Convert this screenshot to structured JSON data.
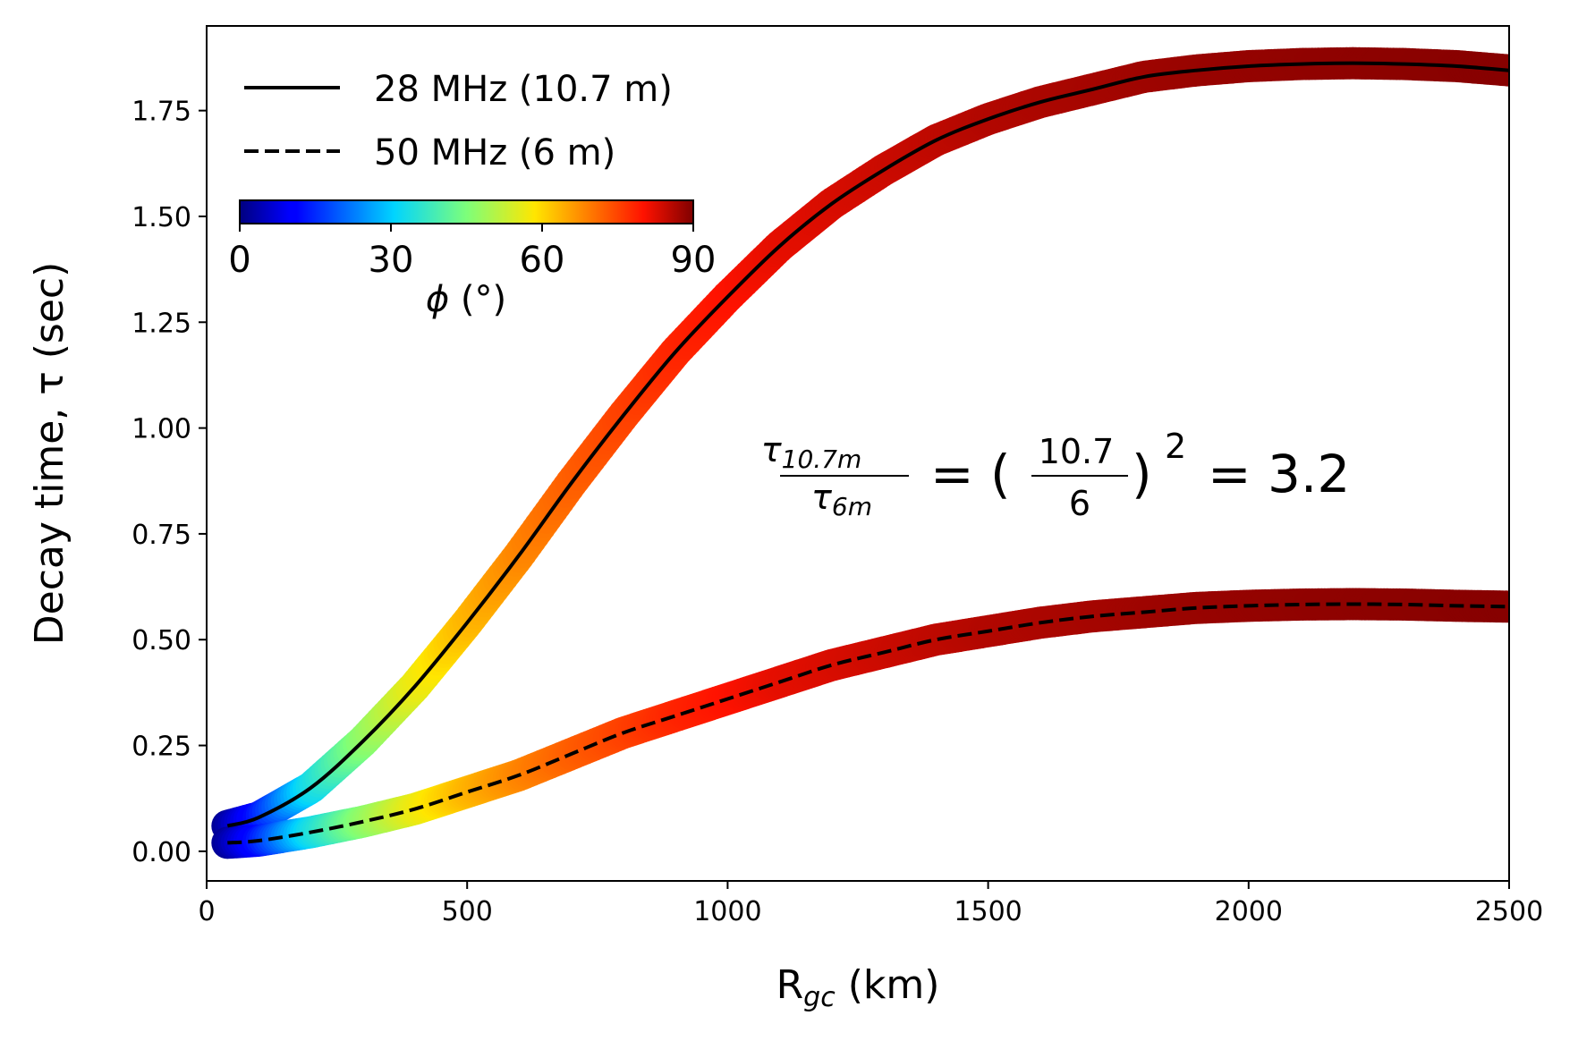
{
  "chart_data": {
    "type": "line",
    "xlabel": "R",
    "xlabel_sub": "gc",
    "xlabel_unit": " (km)",
    "ylabel": "Decay time, τ (sec)",
    "xlim": [
      0,
      2500
    ],
    "ylim": [
      -0.07,
      1.95
    ],
    "xticks": [
      0,
      500,
      1000,
      1500,
      2000,
      2500
    ],
    "xtick_labels": [
      "0",
      "500",
      "1000",
      "1500",
      "2000",
      "2500"
    ],
    "yticks": [
      0.0,
      0.25,
      0.5,
      0.75,
      1.0,
      1.25,
      1.5,
      1.75
    ],
    "ytick_labels": [
      "0.00",
      "0.25",
      "0.50",
      "0.75",
      "1.00",
      "1.25",
      "1.50",
      "1.75"
    ],
    "grid": false,
    "legend_position": "top-left",
    "series": [
      {
        "name": "28 MHz (10.7 m)",
        "line_style": "solid",
        "color": "#000000",
        "x": [
          40,
          100,
          200,
          300,
          400,
          500,
          600,
          700,
          800,
          900,
          1000,
          1100,
          1200,
          1300,
          1400,
          1500,
          1600,
          1700,
          1800,
          1900,
          2000,
          2100,
          2200,
          2300,
          2400,
          2500
        ],
        "y": [
          0.06,
          0.08,
          0.15,
          0.26,
          0.39,
          0.54,
          0.7,
          0.87,
          1.03,
          1.18,
          1.31,
          1.43,
          1.53,
          1.61,
          1.68,
          1.73,
          1.77,
          1.8,
          1.83,
          1.845,
          1.855,
          1.86,
          1.862,
          1.86,
          1.855,
          1.845
        ]
      },
      {
        "name": "50 MHz (6 m)",
        "line_style": "dashed",
        "color": "#000000",
        "x": [
          40,
          100,
          200,
          300,
          400,
          500,
          600,
          700,
          800,
          900,
          1000,
          1100,
          1200,
          1300,
          1400,
          1500,
          1600,
          1700,
          1800,
          1900,
          2000,
          2100,
          2200,
          2300,
          2400,
          2500
        ],
        "y": [
          0.02,
          0.025,
          0.045,
          0.07,
          0.1,
          0.14,
          0.18,
          0.23,
          0.28,
          0.32,
          0.36,
          0.4,
          0.44,
          0.47,
          0.5,
          0.52,
          0.54,
          0.555,
          0.565,
          0.575,
          0.58,
          0.583,
          0.584,
          0.583,
          0.58,
          0.578
        ]
      }
    ],
    "phi_band": {
      "x": [
        40,
        100,
        200,
        300,
        400,
        500,
        600,
        700,
        800,
        900,
        1000,
        1100,
        1200,
        1300,
        1400,
        1500,
        1600,
        1700,
        1800,
        1900,
        2000,
        2100,
        2200,
        2300,
        2400,
        2500
      ],
      "phi_deg": [
        2,
        12,
        32,
        46,
        56,
        63,
        68,
        72,
        75,
        78,
        80,
        82,
        83,
        84,
        85,
        86,
        86.5,
        87,
        87.5,
        88,
        88.3,
        88.6,
        88.8,
        89,
        89.2,
        89.4
      ]
    },
    "colorbar": {
      "label": "φ (°)",
      "label_symbol": "ϕ",
      "label_unit": " (°)",
      "min": 0,
      "max": 90,
      "ticks": [
        0,
        30,
        60,
        90
      ],
      "tick_labels": [
        "0",
        "30",
        "60",
        "90"
      ],
      "colormap": "jet",
      "position": "upper-left"
    },
    "annotation": {
      "num_symbol": "τ",
      "num_sub": "10.7m",
      "den_symbol": "τ",
      "den_sub": "6m",
      "eq1": "= (",
      "frac_num": "10.7",
      "frac_den": "6",
      "close": ")",
      "power": "2",
      "eq2": "= 3.2"
    }
  }
}
